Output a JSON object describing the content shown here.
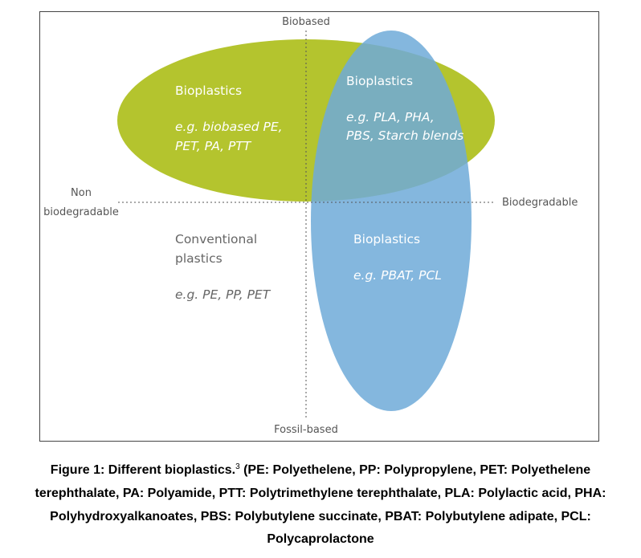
{
  "axes": {
    "top": "Biobased",
    "bottom": "Fossil-based",
    "left": [
      "Non",
      "biodegradable"
    ],
    "right": "Biodegradable"
  },
  "regions": [
    {
      "title": "Bioplastics",
      "examples": [
        "e.g. biobased PE,",
        "PET, PA, PTT"
      ]
    },
    {
      "title": "Bioplastics",
      "examples": [
        "e.g. PLA, PHA,",
        "PBS, Starch blends"
      ]
    },
    {
      "title": [
        "Conventional",
        "plastics"
      ],
      "examples": [
        "e.g. PE, PP, PET"
      ]
    },
    {
      "title": "Bioplastics",
      "examples": [
        "e.g. PBAT, PCL"
      ]
    }
  ],
  "caption": {
    "title": "Figure 1: Different bioplastics.",
    "footnote": "3",
    "lines": [
      " (PE: Polyethelene, PP: Polypropylene, PET: Polyethelene",
      "terephthalate, PA: Polyamide, PTT: Polytrimethylene terephthalate, PLA: Polylactic acid, PHA:",
      "Polyhydroxyalkanoates, PBS: Polybutylene succinate, PBAT: Polybutylene adipate, PCL:",
      "Polycaprolactone"
    ]
  }
}
